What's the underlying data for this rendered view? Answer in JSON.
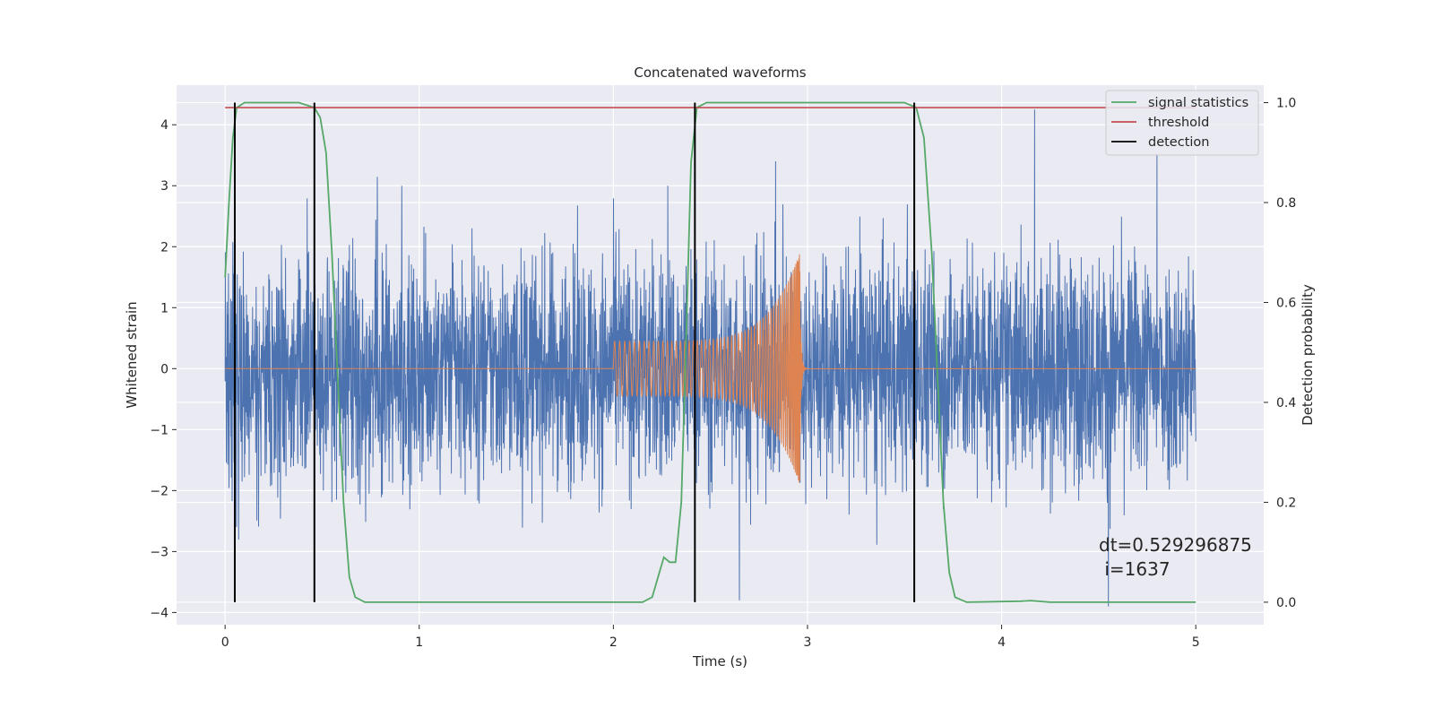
{
  "chart_data": {
    "type": "line",
    "title": "Concatenated waveforms",
    "xlabel": "Time (s)",
    "ylabel": "Whitened strain",
    "y2label": "Detection probability",
    "xlim": [
      -0.25,
      5.35
    ],
    "ylim": [
      -4.2,
      4.65
    ],
    "y2lim": [
      -0.045,
      1.035
    ],
    "xticks": [
      0,
      1,
      2,
      3,
      4,
      5
    ],
    "yticks": [
      -4,
      -3,
      -2,
      -1,
      0,
      1,
      2,
      3,
      4
    ],
    "y2ticks": [
      0.0,
      0.2,
      0.4,
      0.6,
      0.8,
      1.0
    ],
    "xtick_labels": [
      "0",
      "1",
      "2",
      "3",
      "4",
      "5"
    ],
    "ytick_labels": [
      "−4",
      "−3",
      "−2",
      "−1",
      "0",
      "1",
      "2",
      "3",
      "4"
    ],
    "y2tick_labels": [
      "0.0",
      "0.2",
      "0.4",
      "0.6",
      "0.8",
      "1.0"
    ],
    "grid": true,
    "legend_position": "top-right",
    "series": [
      {
        "role": "strain",
        "color": "#4c72b0",
        "x_range": [
          0,
          5
        ],
        "sample_count": 4000,
        "typical_amplitude": 1.5,
        "spikes": [
          {
            "x": 4.17,
            "y": 4.25
          },
          {
            "x": 4.8,
            "y": 3.5
          },
          {
            "x": 2.65,
            "y": -3.8
          },
          {
            "x": 2.28,
            "y": 3.0
          },
          {
            "x": 0.91,
            "y": 3.0
          },
          {
            "x": 4.55,
            "y": -3.9
          }
        ]
      },
      {
        "role": "injected-signal",
        "color": "#dd8452",
        "x_range": [
          0,
          5
        ],
        "chirp_start": 2.0,
        "chirp_end": 2.96,
        "start_amplitude": 0.45,
        "peak_amplitude": 1.9
      },
      {
        "name": "signal statistics",
        "axis": "y2",
        "color": "#55a868",
        "points": [
          [
            0.0,
            0.65
          ],
          [
            0.02,
            0.8
          ],
          [
            0.04,
            0.93
          ],
          [
            0.06,
            0.99
          ],
          [
            0.1,
            1.0
          ],
          [
            0.38,
            1.0
          ],
          [
            0.46,
            0.99
          ],
          [
            0.49,
            0.97
          ],
          [
            0.52,
            0.9
          ],
          [
            0.55,
            0.7
          ],
          [
            0.58,
            0.45
          ],
          [
            0.61,
            0.2
          ],
          [
            0.64,
            0.05
          ],
          [
            0.67,
            0.01
          ],
          [
            0.72,
            0.0
          ],
          [
            2.15,
            0.0
          ],
          [
            2.2,
            0.01
          ],
          [
            2.23,
            0.05
          ],
          [
            2.26,
            0.09
          ],
          [
            2.29,
            0.08
          ],
          [
            2.32,
            0.08
          ],
          [
            2.35,
            0.2
          ],
          [
            2.38,
            0.6
          ],
          [
            2.4,
            0.88
          ],
          [
            2.43,
            0.99
          ],
          [
            2.48,
            1.0
          ],
          [
            3.5,
            1.0
          ],
          [
            3.56,
            0.99
          ],
          [
            3.6,
            0.93
          ],
          [
            3.64,
            0.7
          ],
          [
            3.67,
            0.45
          ],
          [
            3.7,
            0.2
          ],
          [
            3.73,
            0.06
          ],
          [
            3.76,
            0.01
          ],
          [
            3.82,
            0.0
          ],
          [
            4.1,
            0.002
          ],
          [
            4.15,
            0.003
          ],
          [
            4.25,
            0.0
          ],
          [
            5.0,
            0.0
          ]
        ]
      },
      {
        "name": "threshold",
        "axis": "y2",
        "color": "#c44e52",
        "value": 0.99,
        "x_range": [
          0,
          5
        ]
      },
      {
        "name": "detection",
        "axis": "y2",
        "color": "#000000",
        "x_values": [
          0.05,
          0.46,
          2.42,
          3.55
        ],
        "y_range": [
          0.0,
          1.0
        ]
      }
    ],
    "annotation": {
      "line1": "dt=0.529296875",
      "line2": " i=1637"
    }
  }
}
